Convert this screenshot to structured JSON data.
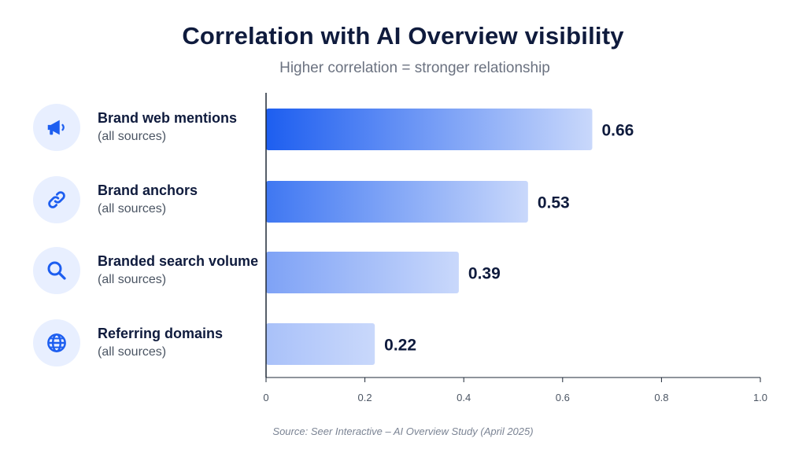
{
  "header": {
    "title": "Correlation with AI Overview visibility",
    "subtitle": "Higher correlation = stronger relationship"
  },
  "rows": [
    {
      "label": "Brand web mentions",
      "sublabel": "(all sources)",
      "icon": "megaphone-icon"
    },
    {
      "label": "Brand anchors",
      "sublabel": "(all sources)",
      "icon": "link-icon"
    },
    {
      "label": "Branded search volume",
      "sublabel": "(all sources)",
      "icon": "search-icon"
    },
    {
      "label": "Referring domains",
      "sublabel": "(all sources)",
      "icon": "globe-icon"
    }
  ],
  "footer": {
    "source": "Source: Seer Interactive – AI Overview Study (April 2025)"
  },
  "colors": {
    "accent": "#1d5ef0",
    "bar_light": "#c9d8fb",
    "icon_bg": "#e8efff",
    "text_dark": "#0f1b3d"
  },
  "chart_data": {
    "type": "bar",
    "orientation": "horizontal",
    "title": "Correlation with AI Overview visibility",
    "subtitle": "Higher correlation = stronger relationship",
    "categories": [
      "Brand web mentions",
      "Brand anchors",
      "Branded search volume",
      "Referring domains"
    ],
    "values": [
      0.66,
      0.53,
      0.39,
      0.22
    ],
    "value_labels": [
      "0.66",
      "0.53",
      "0.39",
      "0.22"
    ],
    "xlim": [
      0,
      1.0
    ],
    "xticks": [
      0,
      0.2,
      0.4,
      0.6,
      0.8,
      1.0
    ],
    "xtick_labels": [
      "0",
      "0.2",
      "0.4",
      "0.6",
      "0.8",
      "1.0"
    ],
    "grid": false,
    "legend": "none"
  }
}
